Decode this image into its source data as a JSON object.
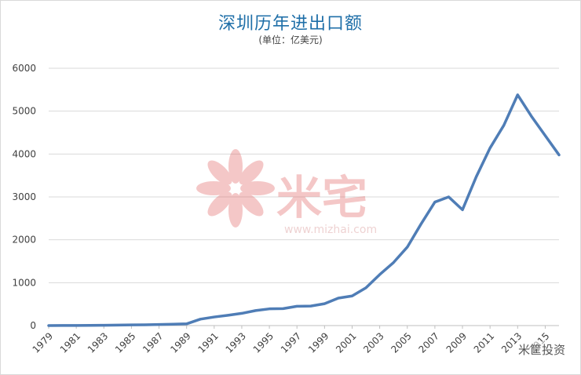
{
  "chart_data": {
    "type": "line",
    "title": "深圳历年进出口额",
    "subtitle": "(单位：亿美元)",
    "xlabel": "",
    "ylabel": "",
    "ylim": [
      0,
      6000
    ],
    "yticks": [
      0,
      1000,
      2000,
      3000,
      4000,
      5000,
      6000
    ],
    "xtick_labels": [
      "1979",
      "1981",
      "1983",
      "1985",
      "1987",
      "1989",
      "1991",
      "1993",
      "1995",
      "1997",
      "1999",
      "2001",
      "2003",
      "2005",
      "2007",
      "2009",
      "2011",
      "2013",
      "2015"
    ],
    "x": [
      1979,
      1980,
      1981,
      1982,
      1983,
      1984,
      1985,
      1986,
      1987,
      1988,
      1989,
      1990,
      1991,
      1992,
      1993,
      1994,
      1995,
      1996,
      1997,
      1998,
      1999,
      2000,
      2001,
      2002,
      2003,
      2004,
      2005,
      2006,
      2007,
      2008,
      2009,
      2010,
      2011,
      2012,
      2013,
      2014,
      2015,
      2016
    ],
    "series": [
      {
        "name": "",
        "color": "#4f7db6",
        "values": [
          1,
          2,
          3,
          4,
          7,
          11,
          16,
          19,
          25,
          32,
          40,
          150,
          200,
          240,
          285,
          350,
          390,
          395,
          450,
          455,
          510,
          640,
          690,
          880,
          1190,
          1470,
          1830,
          2370,
          2880,
          3000,
          2700,
          3470,
          4140,
          4670,
          5380,
          4880,
          4430,
          3980
        ]
      }
    ],
    "grid": true,
    "legend": "none"
  },
  "watermark": {
    "brand": "米宅",
    "url": "www.mizhai.com",
    "color": "#e8a0a0"
  },
  "corner_watermark": "米筐投资"
}
